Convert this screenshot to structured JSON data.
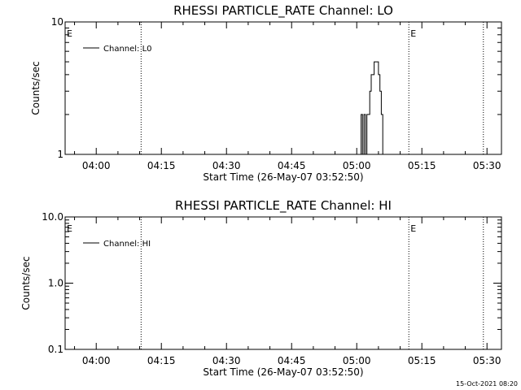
{
  "footer_timestamp": "15-Oct-2021 08:20",
  "chart_data": [
    {
      "type": "line",
      "title": "RHESSI PARTICLE_RATE Channel: LO",
      "xlabel": "Start Time (26-May-07 03:52:50)",
      "ylabel": "Counts/sec",
      "yscale": "log",
      "xlim": [
        "03:52:50",
        "05:33:20"
      ],
      "ylim": [
        1,
        10
      ],
      "x_tick_labels": [
        "04:00",
        "04:15",
        "04:30",
        "04:45",
        "05:00",
        "05:15",
        "05:30"
      ],
      "y_tick_labels": [
        "1",
        "10"
      ],
      "event_lines": [
        "04:10:20",
        "05:12:00",
        "05:29:10"
      ],
      "event_markers": [
        {
          "time": "03:52:50",
          "label": "E"
        },
        {
          "time": "05:12:00",
          "label": "E"
        }
      ],
      "legend": {
        "position": "top-left",
        "entries": [
          "Channel: L0"
        ]
      },
      "series": [
        {
          "name": "Channel: L0",
          "x": [
            "05:00:00",
            "05:00:40",
            "05:01:00",
            "05:01:20",
            "05:01:40",
            "05:02:00",
            "05:02:20",
            "05:02:40",
            "05:03:00",
            "05:03:20",
            "05:03:40",
            "05:04:00",
            "05:04:20",
            "05:04:40",
            "05:05:00",
            "05:05:20",
            "05:05:40",
            "05:06:00",
            "05:06:20"
          ],
          "y": [
            1.0,
            1.0,
            2.0,
            1.0,
            2.0,
            1.0,
            2.0,
            2.0,
            3.0,
            4.0,
            4.0,
            5.0,
            5.0,
            5.0,
            4.0,
            3.0,
            2.0,
            1.0,
            1.0
          ]
        }
      ]
    },
    {
      "type": "line",
      "title": "RHESSI PARTICLE_RATE Channel: HI",
      "xlabel": "Start Time (26-May-07 03:52:50)",
      "ylabel": "Counts/sec",
      "yscale": "log",
      "xlim": [
        "03:52:50",
        "05:33:20"
      ],
      "ylim": [
        0.1,
        10.0
      ],
      "x_tick_labels": [
        "04:00",
        "04:15",
        "04:30",
        "04:45",
        "05:00",
        "05:15",
        "05:30"
      ],
      "y_tick_labels": [
        "0.1",
        "1.0",
        "10.0"
      ],
      "event_lines": [
        "04:10:20",
        "05:12:00",
        "05:29:10"
      ],
      "event_markers": [
        {
          "time": "03:52:50",
          "label": "E"
        },
        {
          "time": "05:12:00",
          "label": "E"
        }
      ],
      "legend": {
        "position": "top-left",
        "entries": [
          "Channel: HI"
        ]
      },
      "series": [
        {
          "name": "Channel: HI",
          "x": [],
          "y": []
        }
      ]
    }
  ]
}
